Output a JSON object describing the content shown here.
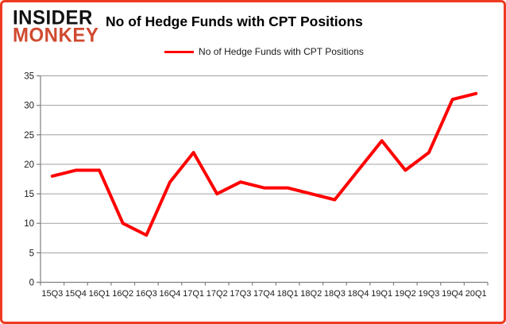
{
  "logo": {
    "line1": "INSIDER",
    "line2": "MONKEY"
  },
  "header": {
    "title": "No of Hedge Funds with CPT Positions"
  },
  "legend": {
    "label": "No of Hedge Funds with CPT Positions"
  },
  "colors": {
    "line": "#ff0000",
    "logo_accent": "#d04a30",
    "page_border": "#ee3a20",
    "gridline": "#a0a0a0",
    "axis": "#808080",
    "tick_text": "#1a1a1a"
  },
  "chart_data": {
    "type": "line",
    "title": "No of Hedge Funds with CPT Positions",
    "categories": [
      "15Q3",
      "15Q4",
      "16Q1",
      "16Q2",
      "16Q3",
      "16Q4",
      "17Q1",
      "17Q2",
      "17Q3",
      "17Q4",
      "18Q1",
      "18Q2",
      "18Q3",
      "18Q4",
      "19Q1",
      "19Q2",
      "19Q3",
      "19Q4",
      "20Q1"
    ],
    "series": [
      {
        "name": "No of Hedge Funds with CPT Positions",
        "values": [
          18,
          19,
          19,
          10,
          8,
          17,
          22,
          15,
          17,
          16,
          16,
          15,
          14,
          19,
          24,
          19,
          22,
          31,
          32
        ]
      }
    ],
    "ylim": [
      0,
      35
    ],
    "ytick_step": 5,
    "ytick_labels": [
      "0",
      "5",
      "10",
      "15",
      "20",
      "25",
      "30",
      "35"
    ],
    "grid": true,
    "legend_position": "top"
  }
}
